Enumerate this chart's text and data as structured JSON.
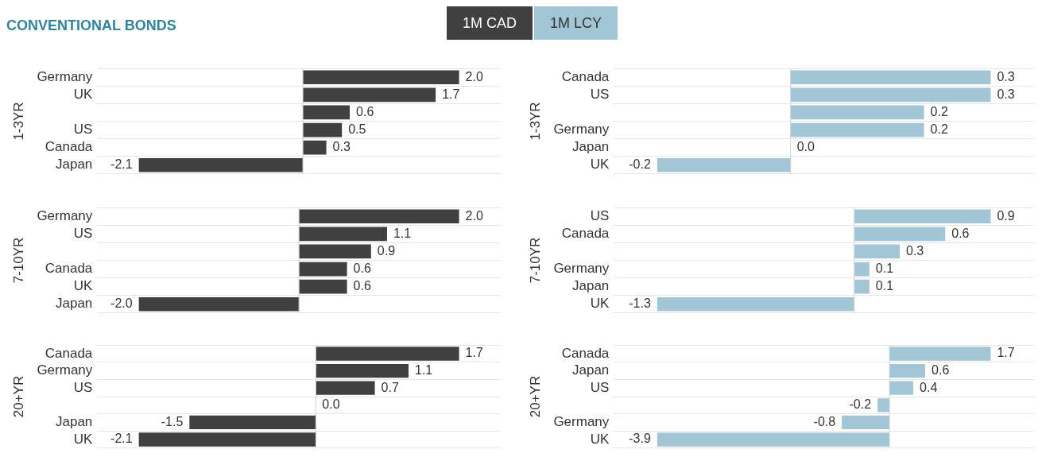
{
  "chart_data": [
    {
      "type": "bar",
      "orientation": "horizontal",
      "title": "CONVENTIONAL BONDS",
      "ylabel": "1-3YR",
      "legend": "top right",
      "grid": "y",
      "categories": [
        "Germany",
        "UK",
        null,
        "US",
        "Canada",
        "Japan"
      ],
      "series": [
        {
          "name": "1M CAD",
          "color": "#404040",
          "values": [
            2.0,
            1.7,
            0.6,
            0.5,
            0.3,
            -2.1
          ],
          "value_labels": [
            "2.0",
            "1.7",
            "0.6",
            "0.5",
            "0.3",
            "-2.1"
          ]
        }
      ]
    },
    {
      "type": "bar",
      "orientation": "horizontal",
      "ylabel": "1-3YR",
      "legend": "top left",
      "grid": "y",
      "categories": [
        "Canada",
        "US",
        null,
        "Germany",
        "Japan",
        "UK"
      ],
      "series": [
        {
          "name": "1M LCY",
          "color": "#a3c6d6",
          "values": [
            0.3,
            0.3,
            0.2,
            0.2,
            0.0,
            -0.2
          ],
          "value_labels": [
            "0.3",
            "0.3",
            "0.2",
            "0.2",
            "0.0",
            "-0.2"
          ]
        }
      ]
    },
    {
      "type": "bar",
      "orientation": "horizontal",
      "ylabel": "7-10YR",
      "grid": "y",
      "categories": [
        "Germany",
        "US",
        null,
        "Canada",
        "UK",
        "Japan"
      ],
      "series": [
        {
          "color": "#404040",
          "values": [
            2.0,
            1.1,
            0.9,
            0.6,
            0.6,
            -2.0
          ],
          "value_labels": [
            "2.0",
            "1.1",
            "0.9",
            "0.6",
            "0.6",
            "-2.0"
          ]
        }
      ]
    },
    {
      "type": "bar",
      "orientation": "horizontal",
      "ylabel": "7-10YR",
      "grid": "y",
      "categories": [
        "US",
        "Canada",
        null,
        "Germany",
        "Japan",
        "UK"
      ],
      "series": [
        {
          "color": "#a3c6d6",
          "values": [
            0.9,
            0.6,
            0.3,
            0.1,
            0.1,
            -1.3
          ],
          "value_labels": [
            "0.9",
            "0.6",
            "0.3",
            "0.1",
            "0.1",
            "-1.3"
          ]
        }
      ]
    },
    {
      "type": "bar",
      "orientation": "horizontal",
      "ylabel": "20+YR",
      "grid": "y",
      "categories": [
        "Canada",
        "Germany",
        "US",
        null,
        "Japan",
        "UK"
      ],
      "series": [
        {
          "color": "#404040",
          "values": [
            1.7,
            1.1,
            0.7,
            0.0,
            -1.5,
            -2.1
          ],
          "value_labels": [
            "1.7",
            "1.1",
            "0.7",
            "0.0",
            "-1.5",
            "-2.1"
          ]
        }
      ]
    },
    {
      "type": "bar",
      "orientation": "horizontal",
      "ylabel": "20+YR",
      "grid": "y",
      "categories": [
        "Canada",
        "Japan",
        "US",
        null,
        "Germany",
        "UK"
      ],
      "series": [
        {
          "color": "#a3c6d6",
          "values": [
            1.7,
            0.6,
            0.4,
            -0.2,
            -0.8,
            -3.9
          ],
          "value_labels": [
            "1.7",
            "0.6",
            "0.4",
            "-0.2",
            "-0.8",
            "-3.9"
          ]
        }
      ]
    }
  ]
}
